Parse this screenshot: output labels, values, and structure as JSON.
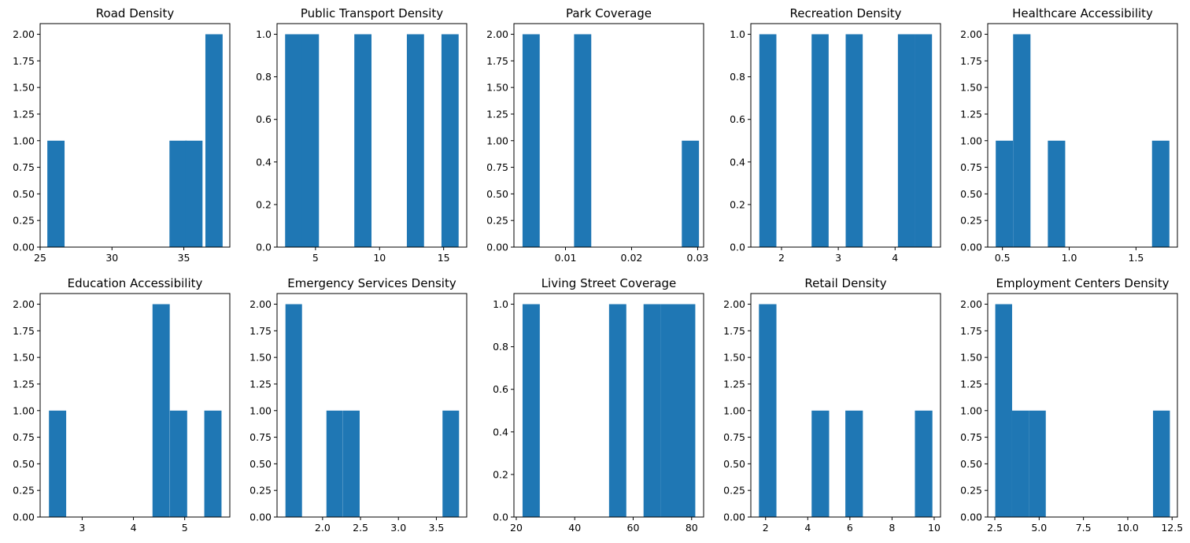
{
  "figure": {
    "bar_color": "#1f77b4"
  },
  "chart_data": [
    {
      "type": "bar",
      "title": "Road Density",
      "x": [
        26.1,
        34.6,
        35.7,
        37.1
      ],
      "values": [
        1,
        1,
        1,
        2
      ],
      "bar_width": 1.2,
      "xlim": [
        25.0,
        38.2
      ],
      "ylim": [
        0,
        2.1
      ],
      "xticks": [
        25,
        30,
        35
      ],
      "xtick_labels": [
        "25",
        "30",
        "35"
      ],
      "yticks": [
        0,
        0.25,
        0.5,
        0.75,
        1.0,
        1.25,
        1.5,
        1.75,
        2.0
      ],
      "ytick_labels": [
        "0.00",
        "0.25",
        "0.50",
        "0.75",
        "1.00",
        "1.25",
        "1.50",
        "1.75",
        "2.00"
      ]
    },
    {
      "type": "bar",
      "title": "Public Transport Density",
      "x": [
        3.3,
        4.6,
        8.7,
        12.8,
        15.5
      ],
      "values": [
        1,
        1,
        1,
        1,
        1
      ],
      "bar_width": 1.34,
      "xlim": [
        2.0,
        16.8
      ],
      "ylim": [
        0,
        1.05
      ],
      "xticks": [
        5,
        10,
        15
      ],
      "xtick_labels": [
        "5",
        "10",
        "15"
      ],
      "yticks": [
        0,
        0.2,
        0.4,
        0.6,
        0.8,
        1.0
      ],
      "ytick_labels": [
        "0.0",
        "0.2",
        "0.4",
        "0.6",
        "0.8",
        "1.0"
      ]
    },
    {
      "type": "bar",
      "title": "Park Coverage",
      "x": [
        0.0048,
        0.0126,
        0.0289
      ],
      "values": [
        2,
        2,
        1
      ],
      "bar_width": 0.0026,
      "xlim": [
        0.0022,
        0.0309
      ],
      "ylim": [
        0,
        2.1
      ],
      "xticks": [
        0.01,
        0.02,
        0.03
      ],
      "xtick_labels": [
        "0.01",
        "0.02",
        "0.03"
      ],
      "yticks": [
        0,
        0.25,
        0.5,
        0.75,
        1.0,
        1.25,
        1.5,
        1.75,
        2.0
      ],
      "ytick_labels": [
        "0.00",
        "0.25",
        "0.50",
        "0.75",
        "1.00",
        "1.25",
        "1.50",
        "1.75",
        "2.00"
      ]
    },
    {
      "type": "bar",
      "title": "Recreation Density",
      "x": [
        1.76,
        2.68,
        3.28,
        4.2,
        4.5
      ],
      "values": [
        1,
        1,
        1,
        1,
        1
      ],
      "bar_width": 0.3,
      "xlim": [
        1.46,
        4.8
      ],
      "ylim": [
        0,
        1.05
      ],
      "xticks": [
        2,
        3,
        4
      ],
      "xtick_labels": [
        "2",
        "3",
        "4"
      ],
      "yticks": [
        0,
        0.2,
        0.4,
        0.6,
        0.8,
        1.0
      ],
      "ytick_labels": [
        "0.0",
        "0.2",
        "0.4",
        "0.6",
        "0.8",
        "1.0"
      ]
    },
    {
      "type": "bar",
      "title": "Healthcare Accessibility",
      "x": [
        0.515,
        0.645,
        0.905,
        1.685
      ],
      "values": [
        1,
        2,
        1,
        1
      ],
      "bar_width": 0.13,
      "xlim": [
        0.39,
        1.81
      ],
      "ylim": [
        0,
        2.1
      ],
      "xticks": [
        0.5,
        1.0,
        1.5
      ],
      "xtick_labels": [
        "0.5",
        "1.0",
        "1.5"
      ],
      "yticks": [
        0,
        0.25,
        0.5,
        0.75,
        1.0,
        1.25,
        1.5,
        1.75,
        2.0
      ],
      "ytick_labels": [
        "0.00",
        "0.25",
        "0.50",
        "0.75",
        "1.00",
        "1.25",
        "1.50",
        "1.75",
        "2.00"
      ]
    },
    {
      "type": "bar",
      "title": "Education Accessibility",
      "x": [
        2.52,
        4.54,
        4.88,
        5.55
      ],
      "values": [
        1,
        2,
        1,
        1
      ],
      "bar_width": 0.336,
      "xlim": [
        2.18,
        5.88
      ],
      "ylim": [
        0,
        2.1
      ],
      "xticks": [
        3,
        4,
        5
      ],
      "xtick_labels": [
        "3",
        "4",
        "5"
      ],
      "yticks": [
        0,
        0.25,
        0.5,
        0.75,
        1.0,
        1.25,
        1.5,
        1.75,
        2.0
      ],
      "ytick_labels": [
        "0.00",
        "0.25",
        "0.50",
        "0.75",
        "1.00",
        "1.25",
        "1.50",
        "1.75",
        "2.00"
      ]
    },
    {
      "type": "bar",
      "title": "Emergency Services Density",
      "x": [
        1.62,
        2.16,
        2.38,
        3.69
      ],
      "values": [
        2,
        1,
        1,
        1
      ],
      "bar_width": 0.218,
      "xlim": [
        1.4,
        3.9
      ],
      "ylim": [
        0,
        2.1
      ],
      "xticks": [
        2.0,
        2.5,
        3.0,
        3.5
      ],
      "xtick_labels": [
        "2.0",
        "2.5",
        "3.0",
        "3.5"
      ],
      "yticks": [
        0,
        0.25,
        0.5,
        0.75,
        1.0,
        1.25,
        1.5,
        1.75,
        2.0
      ],
      "ytick_labels": [
        "0.00",
        "0.25",
        "0.50",
        "0.75",
        "1.00",
        "1.25",
        "1.50",
        "1.75",
        "2.00"
      ]
    },
    {
      "type": "bar",
      "title": "Living Street Coverage",
      "x": [
        25.1,
        54.7,
        66.5,
        72.4,
        78.3
      ],
      "values": [
        1,
        1,
        1,
        1,
        1
      ],
      "bar_width": 5.9,
      "xlim": [
        19.2,
        84.1
      ],
      "ylim": [
        0,
        1.05
      ],
      "xticks": [
        20,
        40,
        60,
        80
      ],
      "xtick_labels": [
        "20",
        "40",
        "60",
        "80"
      ],
      "yticks": [
        0,
        0.2,
        0.4,
        0.6,
        0.8,
        1.0
      ],
      "ytick_labels": [
        "0.0",
        "0.2",
        "0.4",
        "0.6",
        "0.8",
        "1.0"
      ]
    },
    {
      "type": "bar",
      "title": "Retail Density",
      "x": [
        2.1,
        4.6,
        6.2,
        9.5
      ],
      "values": [
        2,
        1,
        1,
        1
      ],
      "bar_width": 0.83,
      "xlim": [
        1.3,
        10.3
      ],
      "ylim": [
        0,
        2.1
      ],
      "xticks": [
        2,
        4,
        6,
        8,
        10
      ],
      "xtick_labels": [
        "2",
        "4",
        "6",
        "8",
        "10"
      ],
      "yticks": [
        0,
        0.25,
        0.5,
        0.75,
        1.0,
        1.25,
        1.5,
        1.75,
        2.0
      ],
      "ytick_labels": [
        "0.00",
        "0.25",
        "0.50",
        "0.75",
        "1.00",
        "1.25",
        "1.50",
        "1.75",
        "2.00"
      ]
    },
    {
      "type": "bar",
      "title": "Employment Centers Density",
      "x": [
        3.0,
        3.95,
        4.9,
        11.9
      ],
      "values": [
        2,
        1,
        1,
        1
      ],
      "bar_width": 0.95,
      "xlim": [
        2.1,
        12.8
      ],
      "ylim": [
        0,
        2.1
      ],
      "xticks": [
        2.5,
        5.0,
        7.5,
        10.0,
        12.5
      ],
      "xtick_labels": [
        "2.5",
        "5.0",
        "7.5",
        "10.0",
        "12.5"
      ],
      "yticks": [
        0,
        0.25,
        0.5,
        0.75,
        1.0,
        1.25,
        1.5,
        1.75,
        2.0
      ],
      "ytick_labels": [
        "0.00",
        "0.25",
        "0.50",
        "0.75",
        "1.00",
        "1.25",
        "1.50",
        "1.75",
        "2.00"
      ]
    }
  ]
}
